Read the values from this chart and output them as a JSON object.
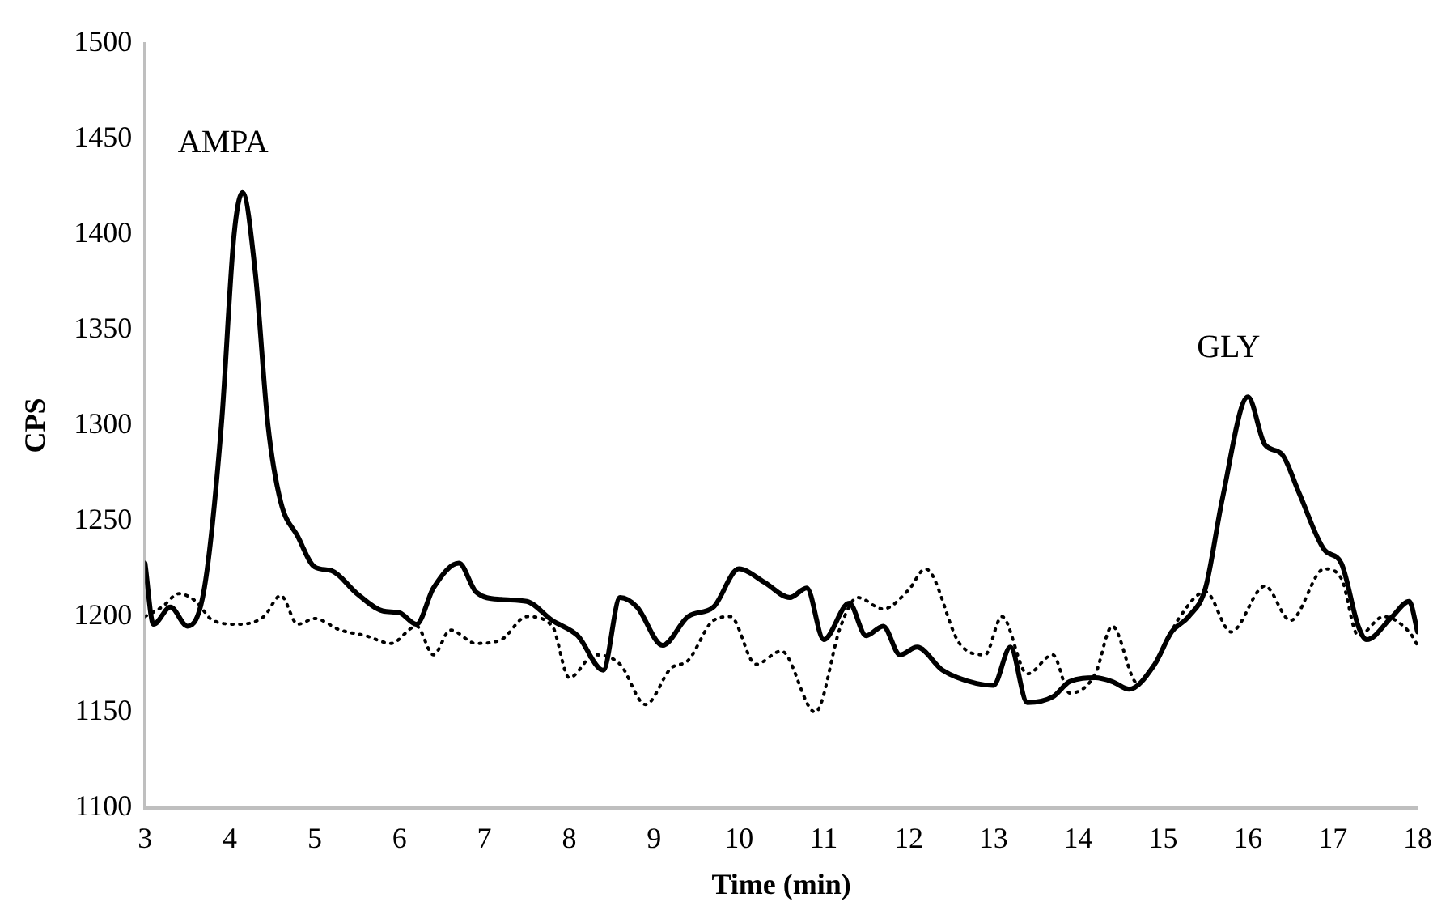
{
  "chart_data": {
    "type": "line",
    "xlabel": "Time (min)",
    "ylabel": "CPS",
    "xlim": [
      3,
      18
    ],
    "xticks": [
      3,
      4,
      5,
      6,
      7,
      8,
      9,
      10,
      11,
      12,
      13,
      14,
      15,
      16,
      17,
      18
    ],
    "ylim": [
      1100,
      1500
    ],
    "yticks": [
      1100,
      1150,
      1200,
      1250,
      1300,
      1350,
      1400,
      1450,
      1500
    ],
    "grid": false,
    "legend": false,
    "marker": "none",
    "annotations": [
      {
        "text": "AMPA",
        "x": 4.15,
        "y": 1422
      },
      {
        "text": "GLY",
        "x": 16.0,
        "y": 1315
      }
    ],
    "series": [
      {
        "color": "#000000",
        "line_style": "solid",
        "x": [
          3.0,
          3.1,
          3.3,
          3.5,
          3.7,
          3.9,
          4.05,
          4.15,
          4.3,
          4.45,
          4.6,
          4.8,
          5.0,
          5.2,
          5.5,
          5.8,
          6.0,
          6.2,
          6.4,
          6.7,
          6.9,
          7.2,
          7.5,
          7.8,
          8.1,
          8.4,
          8.6,
          8.8,
          9.1,
          9.4,
          9.7,
          10.0,
          10.3,
          10.6,
          10.8,
          11.0,
          11.3,
          11.5,
          11.7,
          11.9,
          12.1,
          12.4,
          12.8,
          13.0,
          13.2,
          13.4,
          13.7,
          13.9,
          14.2,
          14.4,
          14.6,
          14.9,
          15.1,
          15.3,
          15.5,
          15.7,
          16.0,
          16.2,
          16.4,
          16.6,
          16.9,
          17.1,
          17.3,
          17.4,
          17.7,
          17.9,
          18.0
        ],
        "values": [
          1228,
          1196,
          1205,
          1195,
          1215,
          1300,
          1400,
          1422,
          1380,
          1300,
          1260,
          1242,
          1226,
          1224,
          1212,
          1203,
          1202,
          1196,
          1215,
          1228,
          1213,
          1209,
          1208,
          1198,
          1190,
          1172,
          1210,
          1205,
          1185,
          1200,
          1205,
          1225,
          1218,
          1210,
          1215,
          1188,
          1207,
          1190,
          1195,
          1180,
          1184,
          1172,
          1165,
          1164,
          1184,
          1155,
          1158,
          1166,
          1168,
          1166,
          1162,
          1175,
          1192,
          1200,
          1215,
          1262,
          1315,
          1290,
          1285,
          1265,
          1235,
          1228,
          1195,
          1188,
          1200,
          1208,
          1192
        ]
      },
      {
        "color": "#000000",
        "line_style": "dotted",
        "x": [
          3.0,
          3.2,
          3.4,
          3.6,
          3.8,
          4.1,
          4.4,
          4.6,
          4.8,
          5.0,
          5.3,
          5.6,
          5.9,
          6.2,
          6.4,
          6.6,
          6.9,
          7.2,
          7.5,
          7.8,
          8.0,
          8.3,
          8.6,
          8.9,
          9.2,
          9.4,
          9.7,
          9.9,
          10.2,
          10.5,
          10.9,
          11.2,
          11.4,
          11.7,
          12.0,
          12.2,
          12.6,
          12.9,
          13.1,
          13.4,
          13.7,
          13.9,
          14.2,
          14.4,
          14.7,
          14.9,
          15.2,
          15.5,
          15.8,
          16.2,
          16.5,
          16.9,
          17.1,
          17.3,
          17.6,
          17.9,
          18.0
        ],
        "values": [
          1200,
          1205,
          1212,
          1208,
          1198,
          1196,
          1200,
          1211,
          1196,
          1199,
          1193,
          1190,
          1186,
          1195,
          1180,
          1193,
          1186,
          1188,
          1200,
          1195,
          1168,
          1180,
          1175,
          1154,
          1173,
          1177,
          1198,
          1200,
          1175,
          1182,
          1150,
          1195,
          1210,
          1204,
          1214,
          1225,
          1186,
          1180,
          1200,
          1170,
          1180,
          1160,
          1170,
          1195,
          1165,
          1175,
          1200,
          1213,
          1192,
          1216,
          1198,
          1225,
          1220,
          1190,
          1200,
          1192,
          1185
        ]
      }
    ]
  }
}
